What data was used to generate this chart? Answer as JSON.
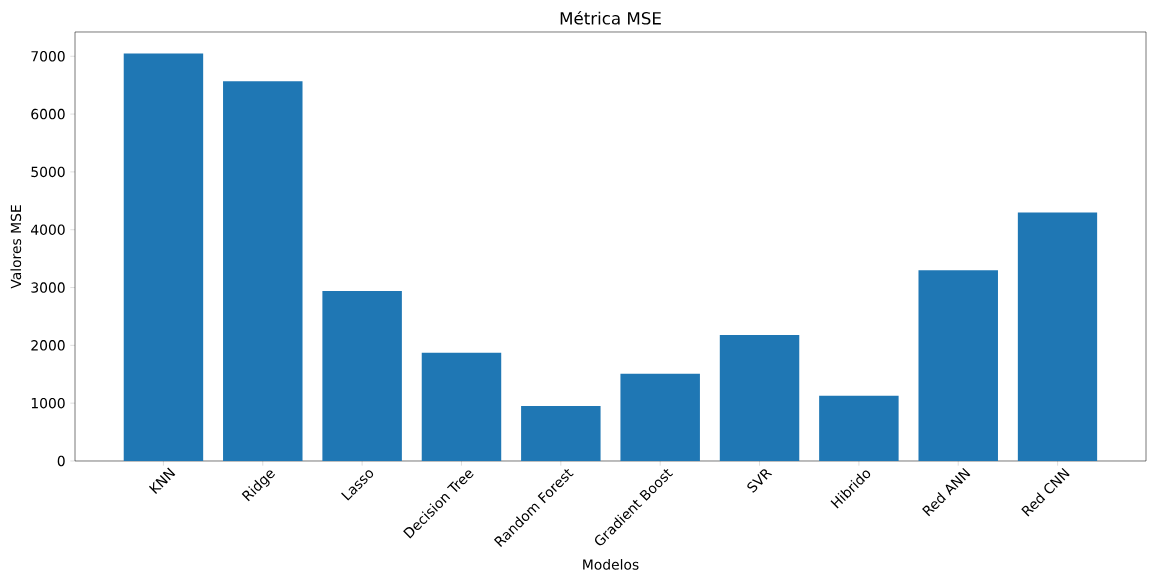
{
  "chart_data": {
    "type": "bar",
    "title": "Métrica MSE",
    "xlabel": "Modelos",
    "ylabel": "Valores MSE",
    "categories": [
      "KNN",
      "Ridge",
      "Lasso",
      "Decision Tree",
      "Random Forest",
      "Gradient Boost",
      "SVR",
      "Hibrido",
      "Red ANN",
      "Red CNN"
    ],
    "values": [
      7050,
      6570,
      2940,
      1870,
      950,
      1510,
      2180,
      1130,
      3300,
      4300
    ],
    "color": "#1f77b4",
    "ylim": [
      0,
      7420
    ],
    "yticks": [
      0,
      1000,
      2000,
      3000,
      4000,
      5000,
      6000,
      7000
    ]
  }
}
